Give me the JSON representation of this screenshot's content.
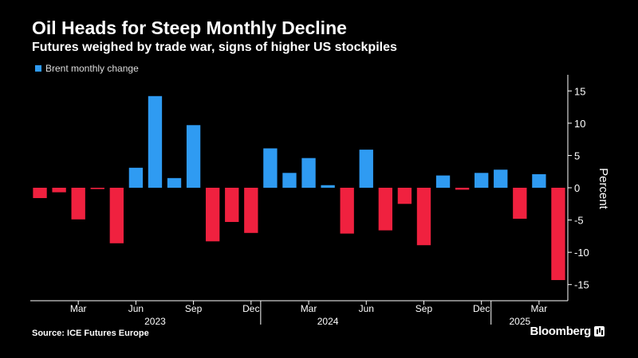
{
  "header": {
    "title": "Oil Heads for Steep Monthly Decline",
    "subtitle": "Futures weighed by trade war, signs of higher US stockpiles"
  },
  "legend": {
    "label": "Brent monthly change",
    "color": "#2f9bf2"
  },
  "footer": {
    "source": "Source: ICE Futures Europe",
    "brand": "Bloomberg"
  },
  "colors": {
    "positive": "#2f9bf2",
    "negative": "#f0213f",
    "axis": "#ffffff"
  },
  "chart_data": {
    "type": "bar",
    "series": [
      {
        "name": "Brent monthly change",
        "values": [
          -1.6,
          -0.7,
          -4.9,
          -0.2,
          -8.6,
          3.1,
          14.2,
          1.5,
          9.7,
          -8.3,
          -5.3,
          -7.0,
          6.1,
          2.3,
          4.6,
          0.4,
          -7.1,
          5.9,
          -6.6,
          -2.5,
          -8.9,
          1.9,
          -0.3,
          2.3,
          2.8,
          -4.8,
          2.1,
          -14.3
        ]
      }
    ],
    "categories": [
      "2023-01",
      "2023-02",
      "2023-03",
      "2023-04",
      "2023-05",
      "2023-06",
      "2023-07",
      "2023-08",
      "2023-09",
      "2023-10",
      "2023-11",
      "2023-12",
      "2024-01",
      "2024-02",
      "2024-03",
      "2024-04",
      "2024-05",
      "2024-06",
      "2024-07",
      "2024-08",
      "2024-09",
      "2024-10",
      "2024-11",
      "2024-12",
      "2025-01",
      "2025-02",
      "2025-03",
      "2025-04"
    ],
    "x_tick_labels": [
      {
        "label": "Mar",
        "index": 2
      },
      {
        "label": "Jun",
        "index": 5
      },
      {
        "label": "Sep",
        "index": 8
      },
      {
        "label": "Dec",
        "index": 11
      },
      {
        "label": "Mar",
        "index": 14
      },
      {
        "label": "Jun",
        "index": 17
      },
      {
        "label": "Sep",
        "index": 20
      },
      {
        "label": "Dec",
        "index": 23
      },
      {
        "label": "Mar",
        "index": 26
      }
    ],
    "year_labels": [
      {
        "label": "2023",
        "index": 6
      },
      {
        "label": "2024",
        "index": 15
      },
      {
        "label": "2025",
        "index": 25
      }
    ],
    "year_boundaries": [
      11.5,
      23.5
    ],
    "yticks": [
      15,
      10,
      5,
      0,
      -5,
      -10,
      -15
    ],
    "ylabel": "Percent",
    "ylim": [
      -17.5,
      17.5
    ],
    "legend_position": "top-left",
    "grid": false
  }
}
